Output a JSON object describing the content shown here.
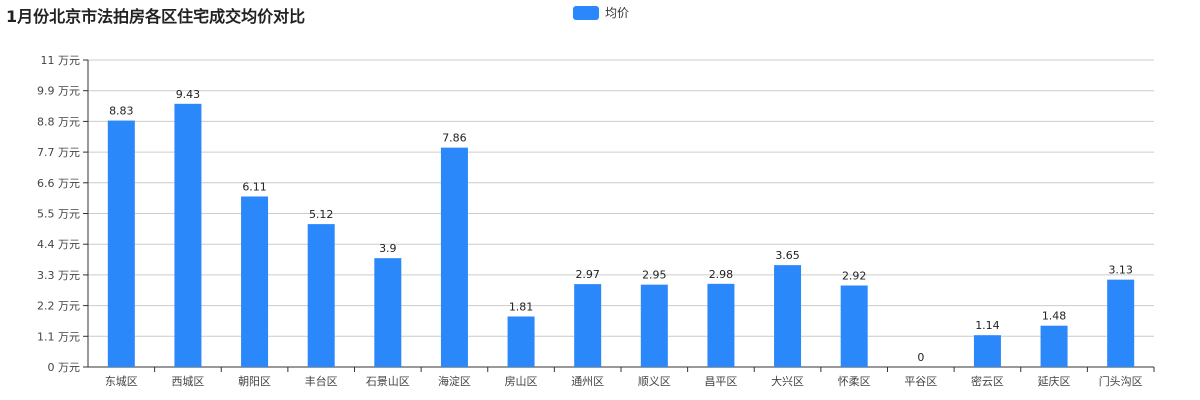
{
  "title": "1月份北京市法拍房各区住宅成交均价对比",
  "legend": {
    "label": "均价",
    "color": "#2b88fb"
  },
  "chart_data": {
    "type": "bar",
    "title": "1月份北京市法拍房各区住宅成交均价对比",
    "categories": [
      "东城区",
      "西城区",
      "朝阳区",
      "丰台区",
      "石景山区",
      "海淀区",
      "房山区",
      "通州区",
      "顺义区",
      "昌平区",
      "大兴区",
      "怀柔区",
      "平谷区",
      "密云区",
      "延庆区",
      "门头沟区"
    ],
    "series": [
      {
        "name": "均价",
        "values": [
          8.83,
          9.43,
          6.11,
          5.12,
          3.9,
          7.86,
          1.81,
          2.97,
          2.95,
          2.98,
          3.65,
          2.92,
          0,
          1.14,
          1.48,
          3.13
        ]
      }
    ],
    "y_ticks": [
      "0 万元",
      "1.1 万元",
      "2.2 万元",
      "3.3 万元",
      "4.4 万元",
      "5.5 万元",
      "6.6 万元",
      "7.7 万元",
      "8.8 万元",
      "9.9 万元",
      "11 万元"
    ],
    "ylim": [
      0,
      11
    ],
    "grid": true,
    "legend_position": "top-center",
    "bar_color": "#2b88fb"
  }
}
